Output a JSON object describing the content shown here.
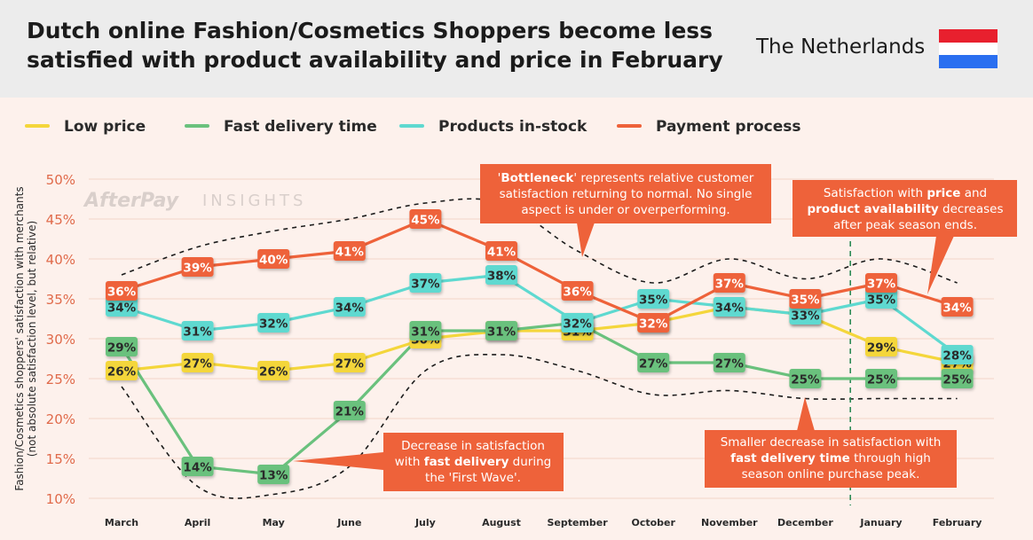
{
  "header": {
    "title_line1": "Dutch online Fashion/Cosmetics Shoppers become less",
    "title_line2": "satisfied with product availability and price in February",
    "country": "The Netherlands",
    "flag_colors": [
      "#e8202e",
      "#ffffff",
      "#2a6ff0"
    ]
  },
  "watermark": {
    "brand": "AfterPay",
    "suffix": "INSIGHTS"
  },
  "chart_data": {
    "type": "line",
    "title": "Dutch online Fashion/Cosmetics Shoppers become less satisfied with product availability and price in February",
    "ylabel_line1": "Fashion/Cosmetics shoppers' satisfaction with merchants",
    "ylabel_line2": "(not absolute satisfaction level, but relative)",
    "xlabel": "",
    "ylim": [
      10,
      50
    ],
    "yticks": [
      10,
      15,
      20,
      25,
      30,
      35,
      40,
      45,
      50
    ],
    "ytick_labels": [
      "10%",
      "15%",
      "20%",
      "25%",
      "30%",
      "35%",
      "40%",
      "45%",
      "50%"
    ],
    "categories": [
      "March",
      "April",
      "May",
      "June",
      "July",
      "August",
      "September",
      "October",
      "November",
      "December",
      "January",
      "February"
    ],
    "series": [
      {
        "name": "Low price",
        "color": "#f4d63b",
        "values": [
          26,
          27,
          26,
          27,
          30,
          31,
          31,
          32,
          34,
          33,
          29,
          27
        ],
        "labels": [
          "26%",
          "27%",
          "26%",
          "27%",
          "30%",
          "31%",
          "31%",
          "32%",
          "34%",
          "33%",
          "29%",
          "27%"
        ]
      },
      {
        "name": "Fast delivery time",
        "color": "#6ac17d",
        "values": [
          29,
          14,
          13,
          21,
          31,
          31,
          32,
          27,
          27,
          25,
          25,
          25
        ],
        "labels": [
          "29%",
          "14%",
          "13%",
          "21%",
          "31%",
          "31%",
          "32%",
          "27%",
          "27%",
          "25%",
          "25%",
          "25%"
        ]
      },
      {
        "name": "Products in-stock",
        "color": "#5ed9d0",
        "values": [
          34,
          31,
          32,
          34,
          37,
          38,
          32,
          35,
          34,
          33,
          35,
          28
        ],
        "labels": [
          "34%",
          "31%",
          "32%",
          "34%",
          "37%",
          "38%",
          "32%",
          "35%",
          "34%",
          "33%",
          "35%",
          "28%"
        ]
      },
      {
        "name": "Payment process",
        "color": "#ee623a",
        "values": [
          36,
          39,
          40,
          41,
          45,
          41,
          36,
          32,
          37,
          35,
          37,
          34
        ],
        "labels": [
          "36%",
          "39%",
          "40%",
          "41%",
          "45%",
          "41%",
          "36%",
          "32%",
          "37%",
          "35%",
          "37%",
          "34%"
        ]
      }
    ],
    "bottleneck_upper": [
      38,
      41.5,
      43.5,
      45,
      47,
      47,
      41,
      37,
      40,
      37.5,
      40,
      37
    ],
    "bottleneck_lower": [
      24,
      11.5,
      10.5,
      14,
      26,
      28,
      26,
      23,
      23.5,
      22.5,
      22.5,
      22.5
    ],
    "annotations": [
      {
        "parts": [
          [
            "'",
            false
          ],
          [
            "Bottleneck",
            true
          ],
          [
            "' represents relative customer",
            false
          ]
        ],
        "line2": "satisfaction returning to normal. No single",
        "line3": "aspect is under or overperforming."
      },
      {
        "line1": "Satisfaction with ",
        "line1b": "price",
        "line1c": " and",
        "line2": "product availability",
        "line2b": " decreases",
        "line3": "after peak season ends."
      },
      {
        "line1": "Decrease in satisfaction",
        "line2": "with ",
        "line2b": "fast delivery",
        "line2c": " during",
        "line3": "the 'First Wave'."
      },
      {
        "line1": "Smaller decrease in satisfaction with",
        "line2": "fast delivery time",
        "line2b": " through high",
        "line3": "season online purchase peak."
      }
    ]
  }
}
